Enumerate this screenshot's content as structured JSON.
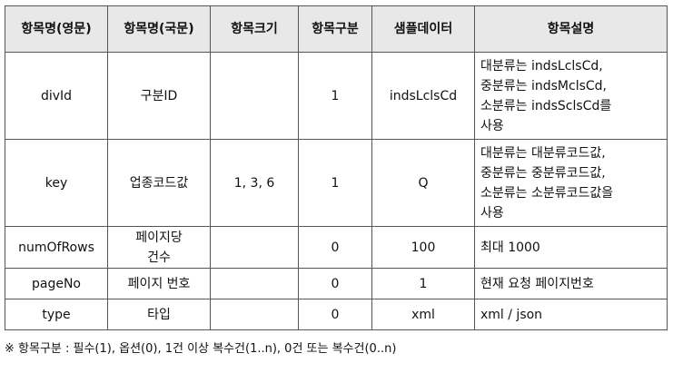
{
  "headers": [
    "항목명(영문)",
    "항목명(국문)",
    "항목크기",
    "항목구분",
    "샘플데이터",
    "항목설명"
  ],
  "rows": [
    {
      "en": "divId",
      "ko": "구분ID",
      "size": "",
      "type": "1",
      "sample": "indsLclsCd",
      "desc": [
        "대분류는 indsLclsCd,",
        "중분류는 indsMclsCd,",
        "소분류는 indsSclsCd를",
        "사용"
      ]
    },
    {
      "en": "key",
      "ko": "업종코드값",
      "size": "1, 3, 6",
      "type": "1",
      "sample": "Q",
      "desc": [
        "대분류는 대분류코드값,",
        "중분류는 중분류코드값,",
        "소분류는 소분류코드값을",
        "사용"
      ]
    },
    {
      "en": "numOfRows",
      "ko": [
        "페이지당",
        "건수"
      ],
      "size": "",
      "type": "0",
      "sample": "100",
      "desc": [
        "최대 1000"
      ]
    },
    {
      "en": "pageNo",
      "ko": "페이지 번호",
      "size": "",
      "type": "0",
      "sample": "1",
      "desc": [
        "현재 요청 페이지번호"
      ]
    },
    {
      "en": "type",
      "ko": "타입",
      "size": "",
      "type": "0",
      "sample": "xml",
      "desc": [
        "xml / json"
      ]
    }
  ],
  "note": "※ 항목구분 : 필수(1), 옵션(0), 1건 이상 복수건(1..n), 0건 또는 복수건(0..n)"
}
